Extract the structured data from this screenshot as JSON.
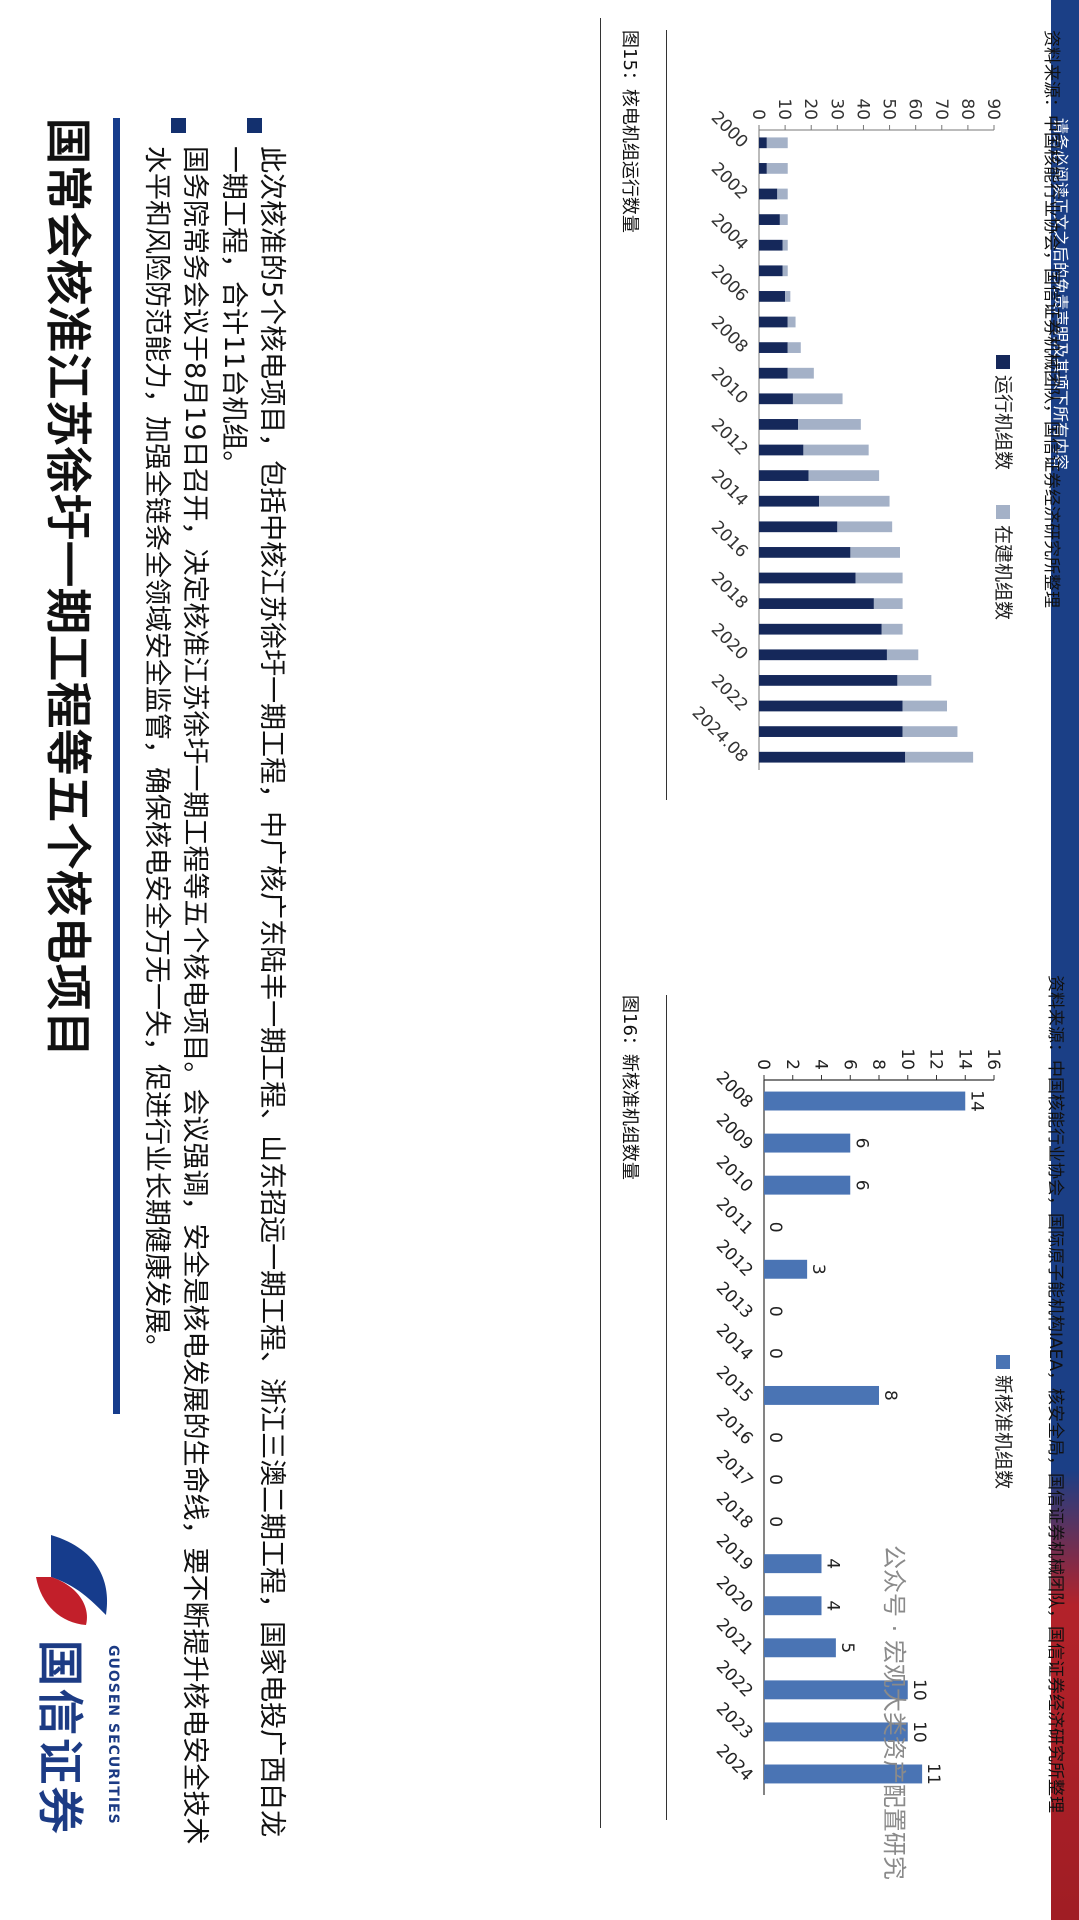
{
  "page": {
    "title": "国常会核准江苏徐圩一期工程等五个核电项目",
    "brand_cn": "国信证券",
    "brand_en": "GUOSEN SECURITIES",
    "bullets": [
      "国务院常务会议于8月19日召开，决定核准江苏徐圩一期工程等五个核电项目。会议强调，安全是核电发展的生命线，要不断提升核电安全技术水平和风险防范能力，加强全链条全领域安全监管，确保核电安全万无一失，促进行业长期健康发展。",
      "此次核准的5个核电项目，包括中核江苏徐圩一期工程，中广核广东陆丰一期工程、山东招远一期工程、浙江三澳二期工程，国家电投广西白龙一期工程，合计11台机组。"
    ],
    "disclaimer": "请务必阅读正文之后的免责声明及其项下所有内容",
    "watermark": "公众号 · 宏观大类资产配置研究"
  },
  "colors": {
    "navy": "#15285a",
    "gray_blue": "#a4b1c7",
    "bar_blue": "#4a74b4",
    "accent": "#163c8c",
    "red": "#c21f2a"
  },
  "fig15": {
    "title": "图15：核电机组运行数量",
    "source": "资料来源：中国核能行业协会，国信证券机械团队，国信证券经济研究所整理"
  },
  "fig16": {
    "title": "图16：新核准机组数量",
    "source": "资料来源：中国核能行业协会，国际原子能机构IAEA，核安全局，国信证券机械团队，国信证券经济研究所整理"
  },
  "chart_data": [
    {
      "type": "bar",
      "stacked": true,
      "categories": [
        "2000",
        "2001",
        "2002",
        "2003",
        "2004",
        "2005",
        "2006",
        "2007",
        "2008",
        "2009",
        "2010",
        "2011",
        "2012",
        "2013",
        "2014",
        "2015",
        "2016",
        "2017",
        "2018",
        "2019",
        "2020",
        "2021",
        "2022",
        "2023",
        "2024.08"
      ],
      "tick_labels": [
        "2000",
        "2002",
        "2004",
        "2006",
        "2008",
        "2010",
        "2012",
        "2014",
        "2016",
        "2018",
        "2020",
        "2022",
        "2024.08"
      ],
      "series": [
        {
          "name": "运行机组数",
          "values": [
            3,
            3,
            7,
            8,
            9,
            9,
            10,
            11,
            11,
            11,
            13,
            15,
            17,
            19,
            23,
            30,
            35,
            37,
            44,
            47,
            49,
            53,
            55,
            55,
            56
          ],
          "color": "#15285a"
        },
        {
          "name": "在建机组数",
          "values": [
            8,
            8,
            4,
            3,
            2,
            2,
            2,
            3,
            5,
            10,
            19,
            24,
            25,
            27,
            27,
            21,
            19,
            18,
            11,
            8,
            12,
            13,
            17,
            21,
            26
          ],
          "color": "#a4b1c7"
        }
      ],
      "ylim": [
        0,
        90
      ],
      "yticks": [
        0,
        10,
        20,
        30,
        40,
        50,
        60,
        70,
        80,
        90
      ],
      "legend": "top-center",
      "grid": false
    },
    {
      "type": "bar",
      "categories": [
        "2008",
        "2009",
        "2010",
        "2011",
        "2012",
        "2013",
        "2014",
        "2015",
        "2016",
        "2017",
        "2018",
        "2019",
        "2020",
        "2021",
        "2022",
        "2023",
        "2024"
      ],
      "series": [
        {
          "name": "新核准机组数",
          "values": [
            14,
            6,
            6,
            0,
            3,
            0,
            0,
            8,
            0,
            0,
            0,
            4,
            4,
            5,
            10,
            10,
            11
          ],
          "color": "#4a74b4"
        }
      ],
      "ylim": [
        0,
        16
      ],
      "yticks": [
        0,
        2,
        4,
        6,
        8,
        10,
        12,
        14,
        16
      ],
      "data_labels": true,
      "legend": "top-center",
      "grid": false
    }
  ]
}
